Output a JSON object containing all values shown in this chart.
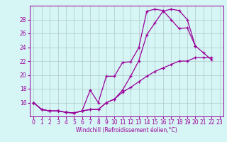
{
  "xlabel": "Windchill (Refroidissement éolien,°C)",
  "background_color": "#d6f5f5",
  "grid_color": "#b0c8c8",
  "line_color": "#990099",
  "xlim": [
    -0.5,
    23.5
  ],
  "ylim": [
    14,
    30
  ],
  "yticks": [
    16,
    18,
    20,
    22,
    24,
    26,
    28
  ],
  "xticks": [
    0,
    1,
    2,
    3,
    4,
    5,
    6,
    7,
    8,
    9,
    10,
    11,
    12,
    13,
    14,
    15,
    16,
    17,
    18,
    19,
    20,
    21,
    22,
    23
  ],
  "series1_x": [
    0,
    1,
    2,
    3,
    4,
    5,
    6,
    7,
    8,
    9,
    10,
    11,
    12,
    13,
    14,
    15,
    16,
    17,
    18,
    19,
    20,
    21,
    22
  ],
  "series1_y": [
    16.0,
    15.0,
    14.8,
    14.8,
    14.6,
    14.5,
    14.8,
    15.0,
    15.0,
    16.0,
    16.5,
    17.8,
    19.8,
    22.0,
    25.8,
    27.5,
    29.2,
    29.5,
    29.3,
    28.0,
    24.2,
    23.2,
    22.2
  ],
  "series2_x": [
    0,
    1,
    2,
    3,
    4,
    5,
    6,
    7,
    8,
    9,
    10,
    11,
    12,
    13,
    14,
    15,
    16,
    17,
    18,
    19,
    20
  ],
  "series2_y": [
    16.0,
    15.0,
    14.8,
    14.8,
    14.6,
    14.5,
    14.8,
    17.8,
    16.0,
    19.8,
    19.8,
    21.8,
    21.9,
    23.9,
    29.2,
    29.5,
    29.3,
    28.0,
    26.7,
    26.8,
    24.2
  ],
  "series3_x": [
    0,
    1,
    2,
    3,
    4,
    5,
    6,
    7,
    8,
    9,
    10,
    11,
    12,
    13,
    14,
    15,
    16,
    17,
    18,
    19,
    20,
    21,
    22
  ],
  "series3_y": [
    16.0,
    15.0,
    14.8,
    14.8,
    14.6,
    14.5,
    14.8,
    15.0,
    15.0,
    16.0,
    16.5,
    17.5,
    18.2,
    19.0,
    19.8,
    20.5,
    21.0,
    21.5,
    22.0,
    22.0,
    22.5,
    22.5,
    22.5
  ]
}
